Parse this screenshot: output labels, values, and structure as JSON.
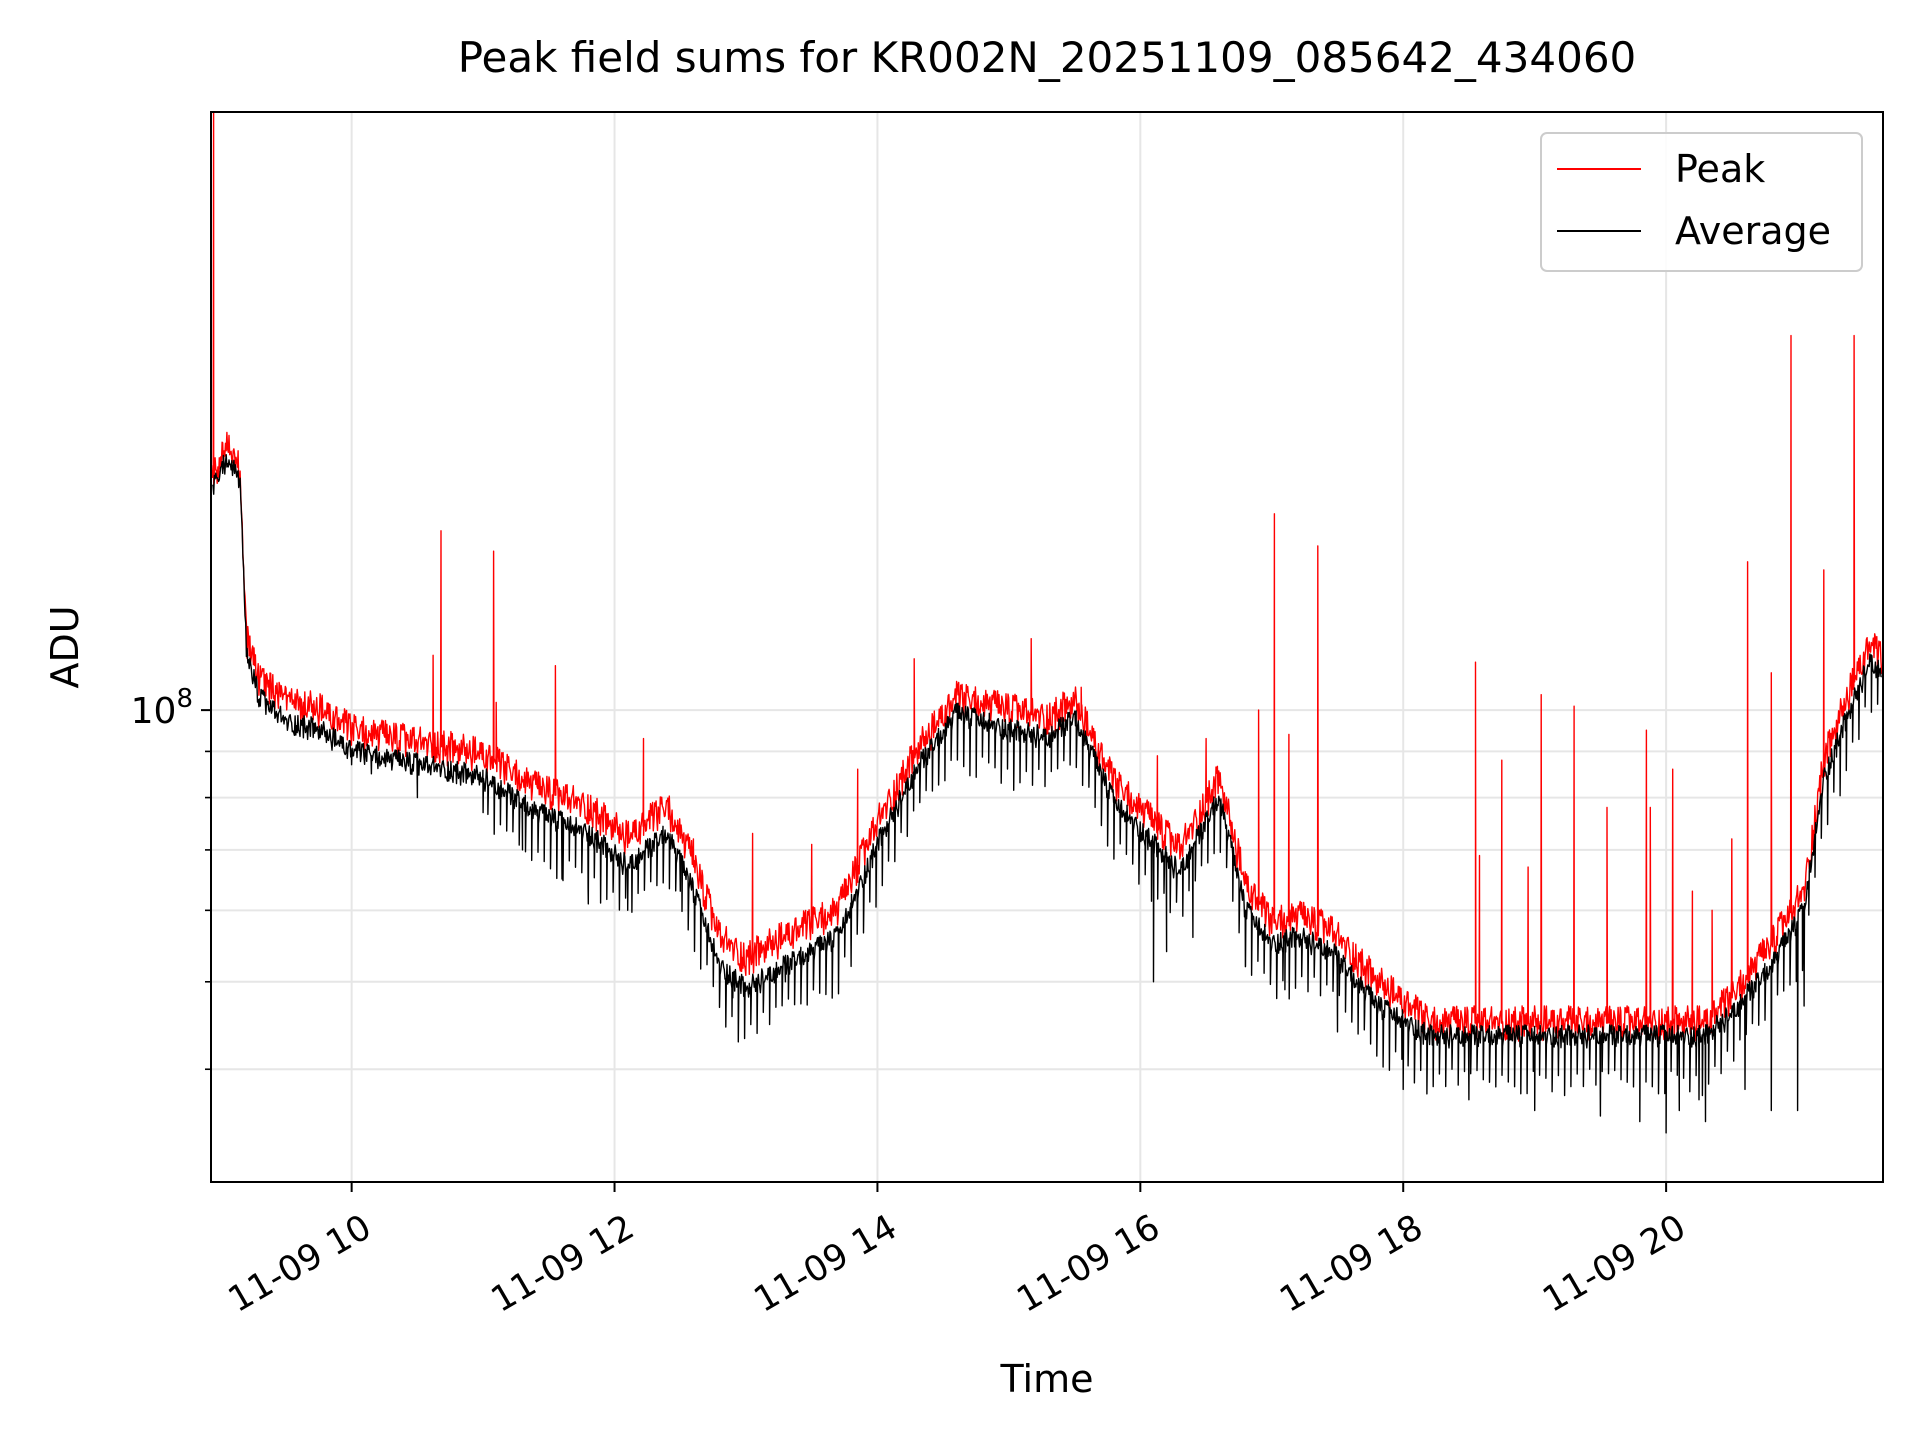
{
  "chart_data": {
    "type": "line",
    "title": "Peak field sums for KR002N_20251109_085642_434060",
    "xlabel": "Time",
    "ylabel": "ADU",
    "yscale": "log",
    "x_unit": "hour of day, 2025-11-09",
    "xlim": [
      8.93,
      21.65
    ],
    "ylim": [
      30000000,
      460000000
    ],
    "grid": true,
    "legend_position": "upper right",
    "x_ticks": [
      {
        "value": 10,
        "label": "11-09 10"
      },
      {
        "value": 12,
        "label": "11-09 12"
      },
      {
        "value": 14,
        "label": "11-09 14"
      },
      {
        "value": 16,
        "label": "11-09 16"
      },
      {
        "value": 18,
        "label": "11-09 18"
      },
      {
        "value": 20,
        "label": "11-09 20"
      }
    ],
    "y_major_ticks": [
      {
        "value": 100000000,
        "label_base": "10",
        "label_exp": "8"
      }
    ],
    "y_minor_ticks": [
      40000000,
      50000000,
      60000000,
      70000000,
      80000000,
      90000000
    ],
    "series": [
      {
        "name": "Peak",
        "color": "#ff0000",
        "baseline": [
          [
            8.94,
            180000000
          ],
          [
            9.05,
            195000000
          ],
          [
            9.15,
            185000000
          ],
          [
            9.2,
            120000000
          ],
          [
            9.3,
            108000000
          ],
          [
            9.5,
            102000000
          ],
          [
            9.75,
            100000000
          ],
          [
            10,
            95000000
          ],
          [
            10.3,
            93000000
          ],
          [
            10.7,
            91000000
          ],
          [
            11,
            89000000
          ],
          [
            11.4,
            82000000
          ],
          [
            11.8,
            78000000
          ],
          [
            12.1,
            72000000
          ],
          [
            12.4,
            78000000
          ],
          [
            12.6,
            68000000
          ],
          [
            12.8,
            56000000
          ],
          [
            13,
            53000000
          ],
          [
            13.3,
            56000000
          ],
          [
            13.7,
            60000000
          ],
          [
            14,
            75000000
          ],
          [
            14.3,
            90000000
          ],
          [
            14.6,
            103000000
          ],
          [
            15,
            100000000
          ],
          [
            15.3,
            98000000
          ],
          [
            15.5,
            102000000
          ],
          [
            15.8,
            83000000
          ],
          [
            16.1,
            75000000
          ],
          [
            16.3,
            70000000
          ],
          [
            16.6,
            84000000
          ],
          [
            16.8,
            64000000
          ],
          [
            17,
            58000000
          ],
          [
            17.2,
            59000000
          ],
          [
            17.45,
            57000000
          ],
          [
            17.8,
            50000000
          ],
          [
            18.2,
            45000000
          ],
          [
            18.6,
            45000000
          ],
          [
            19,
            45000000
          ],
          [
            19.5,
            45000000
          ],
          [
            20,
            45000000
          ],
          [
            20.3,
            45000000
          ],
          [
            20.5,
            48000000
          ],
          [
            20.8,
            55000000
          ],
          [
            21.05,
            63000000
          ],
          [
            21.2,
            88000000
          ],
          [
            21.4,
            105000000
          ],
          [
            21.55,
            118000000
          ],
          [
            21.64,
            114000000
          ]
        ],
        "spikes": [
          [
            8.95,
            460000000
          ],
          [
            10.62,
            115000000
          ],
          [
            10.68,
            158000000
          ],
          [
            11.08,
            150000000
          ],
          [
            11.1,
            102000000
          ],
          [
            11.55,
            112000000
          ],
          [
            12.22,
            93000000
          ],
          [
            12.6,
            72000000
          ],
          [
            13.05,
            73000000
          ],
          [
            13.5,
            71000000
          ],
          [
            13.85,
            86000000
          ],
          [
            14.28,
            114000000
          ],
          [
            15.17,
            120000000
          ],
          [
            15.55,
            106000000
          ],
          [
            16.13,
            89000000
          ],
          [
            16.5,
            93000000
          ],
          [
            16.9,
            100000000
          ],
          [
            17.02,
            165000000
          ],
          [
            17.13,
            94000000
          ],
          [
            17.35,
            152000000
          ],
          [
            18.55,
            113000000
          ],
          [
            18.58,
            69000000
          ],
          [
            18.75,
            88000000
          ],
          [
            18.95,
            67000000
          ],
          [
            19.05,
            104000000
          ],
          [
            19.3,
            101000000
          ],
          [
            19.55,
            78000000
          ],
          [
            19.85,
            95000000
          ],
          [
            19.88,
            78000000
          ],
          [
            20.05,
            86000000
          ],
          [
            20.2,
            63000000
          ],
          [
            20.35,
            60000000
          ],
          [
            20.5,
            72000000
          ],
          [
            20.62,
            146000000
          ],
          [
            20.8,
            110000000
          ],
          [
            20.95,
            260000000
          ],
          [
            21.2,
            143000000
          ],
          [
            21.43,
            260000000
          ]
        ]
      },
      {
        "name": "Average",
        "color": "#000000",
        "baseline": [
          [
            8.94,
            175000000
          ],
          [
            9.05,
            190000000
          ],
          [
            9.15,
            180000000
          ],
          [
            9.2,
            115000000
          ],
          [
            9.3,
            103000000
          ],
          [
            9.5,
            97000000
          ],
          [
            9.75,
            95000000
          ],
          [
            10,
            90000000
          ],
          [
            10.3,
            88000000
          ],
          [
            10.7,
            86000000
          ],
          [
            11,
            84000000
          ],
          [
            11.4,
            77000000
          ],
          [
            11.8,
            73000000
          ],
          [
            12.1,
            67000000
          ],
          [
            12.4,
            73000000
          ],
          [
            12.6,
            63000000
          ],
          [
            12.8,
            52000000
          ],
          [
            13,
            49000000
          ],
          [
            13.3,
            52000000
          ],
          [
            13.7,
            56000000
          ],
          [
            14,
            71000000
          ],
          [
            14.3,
            86000000
          ],
          [
            14.6,
            99000000
          ],
          [
            15,
            95000000
          ],
          [
            15.3,
            93000000
          ],
          [
            15.5,
            98000000
          ],
          [
            15.8,
            79000000
          ],
          [
            16.1,
            71000000
          ],
          [
            16.3,
            66000000
          ],
          [
            16.6,
            80000000
          ],
          [
            16.8,
            60000000
          ],
          [
            17,
            55000000
          ],
          [
            17.2,
            56000000
          ],
          [
            17.45,
            54000000
          ],
          [
            17.8,
            47000000
          ],
          [
            18.2,
            43500000
          ],
          [
            18.6,
            43500000
          ],
          [
            19,
            43500000
          ],
          [
            19.5,
            43500000
          ],
          [
            20,
            43500000
          ],
          [
            20.3,
            43500000
          ],
          [
            20.5,
            46000000
          ],
          [
            20.8,
            52000000
          ],
          [
            21.05,
            60000000
          ],
          [
            21.2,
            84000000
          ],
          [
            21.4,
            100000000
          ],
          [
            21.55,
            113000000
          ],
          [
            21.64,
            110000000
          ]
        ],
        "dips": [
          [
            10,
            87000000
          ],
          [
            10.15,
            85000000
          ],
          [
            10.5,
            80000000
          ],
          [
            11,
            77000000
          ],
          [
            11.3,
            70000000
          ],
          [
            11.6,
            65000000
          ],
          [
            11.8,
            61000000
          ],
          [
            12.1,
            60000000
          ],
          [
            12.5,
            63000000
          ],
          [
            12.9,
            48000000
          ],
          [
            13.3,
            50000000
          ],
          [
            13.8,
            52000000
          ],
          [
            15.8,
            70000000
          ],
          [
            16.1,
            50000000
          ],
          [
            16.2,
            54000000
          ],
          [
            16.4,
            56000000
          ],
          [
            16.8,
            52000000
          ],
          [
            17.1,
            49000000
          ],
          [
            17.5,
            44000000
          ],
          [
            18,
            38000000
          ],
          [
            18.5,
            37000000
          ],
          [
            19,
            36000000
          ],
          [
            19.5,
            35500000
          ],
          [
            19.8,
            35000000
          ],
          [
            20,
            34000000
          ],
          [
            20.1,
            36000000
          ],
          [
            20.25,
            37000000
          ],
          [
            20.3,
            35000000
          ],
          [
            20.6,
            38000000
          ],
          [
            20.8,
            36000000
          ],
          [
            21,
            36000000
          ],
          [
            21.05,
            47000000
          ]
        ]
      }
    ]
  }
}
